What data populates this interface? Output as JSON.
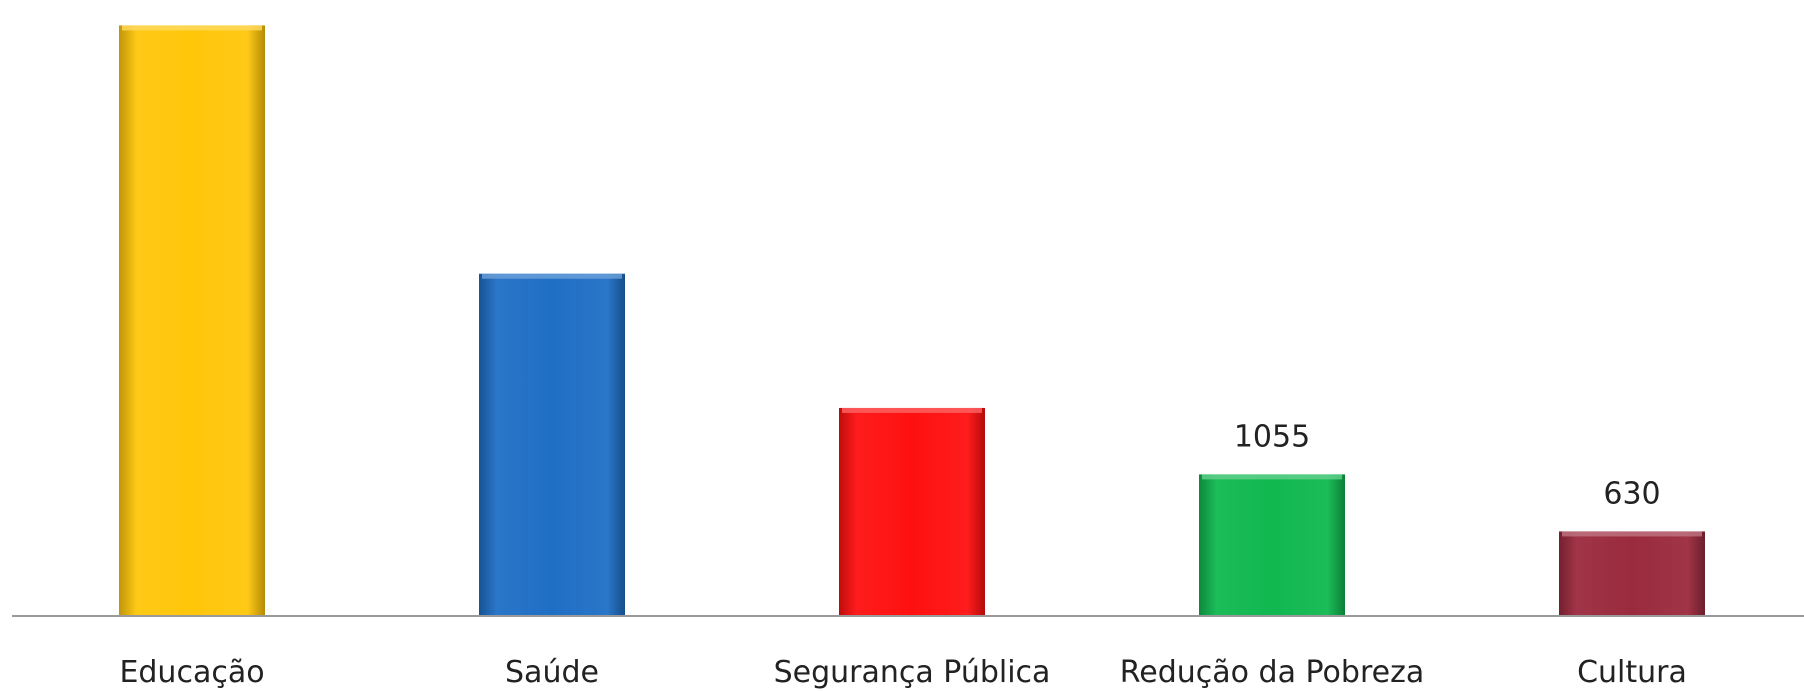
{
  "chart_data": {
    "type": "bar",
    "title": "",
    "xlabel": "",
    "ylabel": "",
    "categories": [
      "Educação",
      "Saúde",
      "Segurança Pública",
      "Redução da Pobreza",
      "Cultura"
    ],
    "values": [
      4400,
      2550,
      1550,
      1055,
      630
    ],
    "data_labels": [
      "",
      "",
      "",
      "1055",
      "630"
    ],
    "colors": [
      "#FFC60A",
      "#1F6FC5",
      "#FF1010",
      "#10B850",
      "#9B2A3E"
    ],
    "ylim": [
      0,
      4500
    ],
    "grid": false,
    "legend": "none"
  }
}
